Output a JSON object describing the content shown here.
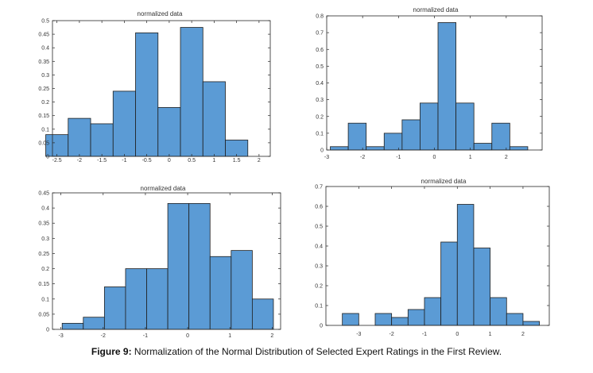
{
  "figure": {
    "caption_label": "Figure 9:",
    "caption_text": " Normalization of the Normal Distribution of Selected Expert Ratings in the First Review."
  },
  "style": {
    "bar_fill": "#5b9bd5",
    "bar_stroke": "#1f1f1f",
    "axis_color": "#262626"
  },
  "chart_data": [
    {
      "type": "bar",
      "title": "normalized data",
      "bin_edges": [
        -2.75,
        -2.25,
        -1.75,
        -1.25,
        -0.75,
        -0.25,
        0.25,
        0.75,
        1.25,
        1.75,
        2.25
      ],
      "values": [
        0.08,
        0.14,
        0.12,
        0.24,
        0.455,
        0.18,
        0.475,
        0.275,
        0.06,
        0
      ],
      "xlim": [
        -2.6,
        2.25
      ],
      "ylim": [
        0,
        0.5
      ],
      "xticks": [
        -2.5,
        -2,
        -1.5,
        -1,
        -0.5,
        0,
        0.5,
        1,
        1.5,
        2
      ],
      "xtick_labels": [
        "-2.5",
        "-2",
        "-1.5",
        "-1",
        "-0.5",
        "0",
        "0.5",
        "1",
        "1.5",
        "2"
      ],
      "yticks": [
        0,
        0.05,
        0.1,
        0.15,
        0.2,
        0.25,
        0.3,
        0.35,
        0.4,
        0.45,
        0.5
      ],
      "ytick_labels": [
        "0",
        "0.05",
        "0.1",
        "0.15",
        "0.2",
        "0.25",
        "0.3",
        "0.35",
        "0.4",
        "0.45",
        "0.5"
      ]
    },
    {
      "type": "bar",
      "title": "normalized data",
      "bin_edges": [
        -2.9,
        -2.4,
        -1.9,
        -1.4,
        -0.9,
        -0.4,
        0.1,
        0.6,
        1.1,
        1.6,
        2.1,
        2.6
      ],
      "values": [
        0.02,
        0.16,
        0.02,
        0.1,
        0.18,
        0.28,
        0.76,
        0.28,
        0.04,
        0.16,
        0.02
      ],
      "xlim": [
        -3,
        3
      ],
      "ylim": [
        0,
        0.8
      ],
      "xticks": [
        -3,
        -2,
        -1,
        0,
        1,
        2
      ],
      "xtick_labels": [
        "-3",
        "-2",
        "-1",
        "0",
        "1",
        "2"
      ],
      "yticks": [
        0,
        0.1,
        0.2,
        0.3,
        0.4,
        0.5,
        0.6,
        0.7,
        0.8
      ],
      "ytick_labels": [
        "0",
        "0.1",
        "0.2",
        "0.3",
        "0.4",
        "0.5",
        "0.6",
        "0.7",
        "0.8"
      ]
    },
    {
      "type": "bar",
      "title": "normalized data",
      "bin_edges": [
        -2.97,
        -2.47,
        -1.97,
        -1.47,
        -0.97,
        -0.47,
        0.03,
        0.53,
        1.03,
        1.53,
        2.03
      ],
      "values": [
        0.02,
        0.04,
        0.14,
        0.2,
        0.2,
        0.415,
        0.415,
        0.24,
        0.26,
        0.1
      ],
      "xlim": [
        -3.2,
        2.2
      ],
      "ylim": [
        0,
        0.45
      ],
      "xticks": [
        -3,
        -2,
        -1,
        0,
        1,
        2
      ],
      "xtick_labels": [
        "-3",
        "-2",
        "-1",
        "0",
        "1",
        "2"
      ],
      "yticks": [
        0,
        0.05,
        0.1,
        0.15,
        0.2,
        0.25,
        0.3,
        0.35,
        0.4,
        0.45
      ],
      "ytick_labels": [
        "0",
        "0.05",
        "0.1",
        "0.15",
        "0.2",
        "0.25",
        "0.3",
        "0.35",
        "0.4",
        "0.45"
      ]
    },
    {
      "type": "bar",
      "title": "normalized data",
      "bin_edges": [
        -3.5,
        -3.0,
        -2.5,
        -2.0,
        -1.5,
        -1.0,
        -0.5,
        0.0,
        0.5,
        1.0,
        1.5,
        2.0,
        2.5
      ],
      "values": [
        0.06,
        0,
        0.06,
        0.04,
        0.08,
        0.14,
        0.42,
        0.61,
        0.39,
        0.14,
        0.06,
        0.02
      ],
      "xlim": [
        -4,
        2.8
      ],
      "ylim": [
        0,
        0.7
      ],
      "xticks": [
        -3,
        -2,
        -1,
        0,
        1,
        2
      ],
      "xtick_labels": [
        "-3",
        "-2",
        "-1",
        "0",
        "1",
        "2"
      ],
      "yticks": [
        0,
        0.1,
        0.2,
        0.3,
        0.4,
        0.5,
        0.6,
        0.7
      ],
      "ytick_labels": [
        "0",
        "0.1",
        "0.2",
        "0.3",
        "0.4",
        "0.5",
        "0.6",
        "0.7"
      ]
    }
  ]
}
